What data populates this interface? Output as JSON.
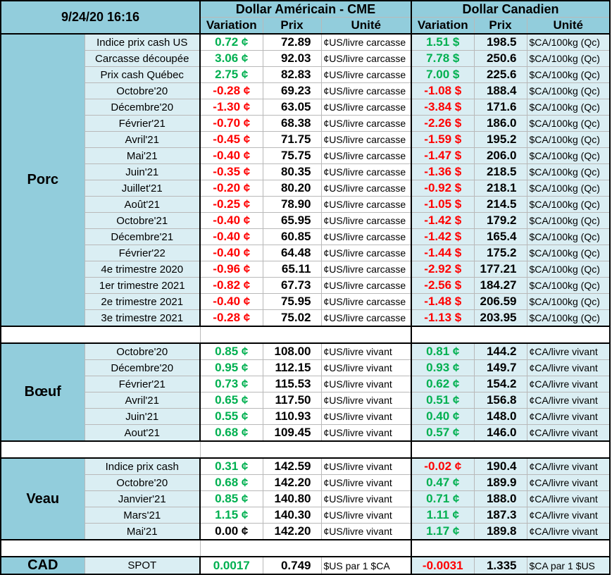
{
  "header": {
    "datetime": "9/24/20 16:16",
    "usd_group": "Dollar Américain - CME",
    "cad_group": "Dollar Canadien",
    "col_variation": "Variation",
    "col_prix": "Prix",
    "col_unite": "Unité"
  },
  "colors": {
    "positive": "#00b050",
    "negative": "#ff0000",
    "header_bg": "#92cddc",
    "row_bg": "#daeef3"
  },
  "sections": [
    {
      "name": "Porc",
      "rows": [
        {
          "label": "Indice prix cash US",
          "us_var": "0.72 ¢",
          "us_price": "72.89",
          "us_unit": "¢US/livre carcasse",
          "ca_var": "1.51 $",
          "ca_price": "198.5",
          "ca_unit": "$CA/100kg (Qc)",
          "us_sign": "pos",
          "ca_sign": "pos"
        },
        {
          "label": "Carcasse découpée",
          "us_var": "3.06 ¢",
          "us_price": "92.03",
          "us_unit": "¢US/livre carcasse",
          "ca_var": "7.78 $",
          "ca_price": "250.6",
          "ca_unit": "$CA/100kg (Qc)",
          "us_sign": "pos",
          "ca_sign": "pos"
        },
        {
          "label": "Prix cash Québec",
          "us_var": "2.75 ¢",
          "us_price": "82.83",
          "us_unit": "¢US/livre carcasse",
          "ca_var": "7.00 $",
          "ca_price": "225.6",
          "ca_unit": "$CA/100kg (Qc)",
          "us_sign": "pos",
          "ca_sign": "pos"
        },
        {
          "label": "Octobre'20",
          "us_var": "-0.28 ¢",
          "us_price": "69.23",
          "us_unit": "¢US/livre carcasse",
          "ca_var": "-1.08 $",
          "ca_price": "188.4",
          "ca_unit": "$CA/100kg (Qc)",
          "us_sign": "neg",
          "ca_sign": "neg"
        },
        {
          "label": "Décembre'20",
          "us_var": "-1.30 ¢",
          "us_price": "63.05",
          "us_unit": "¢US/livre carcasse",
          "ca_var": "-3.84 $",
          "ca_price": "171.6",
          "ca_unit": "$CA/100kg (Qc)",
          "us_sign": "neg",
          "ca_sign": "neg"
        },
        {
          "label": "Février'21",
          "us_var": "-0.70 ¢",
          "us_price": "68.38",
          "us_unit": "¢US/livre carcasse",
          "ca_var": "-2.26 $",
          "ca_price": "186.0",
          "ca_unit": "$CA/100kg (Qc)",
          "us_sign": "neg",
          "ca_sign": "neg"
        },
        {
          "label": "Avril'21",
          "us_var": "-0.45 ¢",
          "us_price": "71.75",
          "us_unit": "¢US/livre carcasse",
          "ca_var": "-1.59 $",
          "ca_price": "195.2",
          "ca_unit": "$CA/100kg (Qc)",
          "us_sign": "neg",
          "ca_sign": "neg"
        },
        {
          "label": "Mai'21",
          "us_var": "-0.40 ¢",
          "us_price": "75.75",
          "us_unit": "¢US/livre carcasse",
          "ca_var": "-1.47 $",
          "ca_price": "206.0",
          "ca_unit": "$CA/100kg (Qc)",
          "us_sign": "neg",
          "ca_sign": "neg"
        },
        {
          "label": "Juin'21",
          "us_var": "-0.35 ¢",
          "us_price": "80.35",
          "us_unit": "¢US/livre carcasse",
          "ca_var": "-1.36 $",
          "ca_price": "218.5",
          "ca_unit": "$CA/100kg (Qc)",
          "us_sign": "neg",
          "ca_sign": "neg"
        },
        {
          "label": "Juillet'21",
          "us_var": "-0.20 ¢",
          "us_price": "80.20",
          "us_unit": "¢US/livre carcasse",
          "ca_var": "-0.92 $",
          "ca_price": "218.1",
          "ca_unit": "$CA/100kg (Qc)",
          "us_sign": "neg",
          "ca_sign": "neg"
        },
        {
          "label": "Août'21",
          "us_var": "-0.25 ¢",
          "us_price": "78.90",
          "us_unit": "¢US/livre carcasse",
          "ca_var": "-1.05 $",
          "ca_price": "214.5",
          "ca_unit": "$CA/100kg (Qc)",
          "us_sign": "neg",
          "ca_sign": "neg"
        },
        {
          "label": "Octobre'21",
          "us_var": "-0.40 ¢",
          "us_price": "65.95",
          "us_unit": "¢US/livre carcasse",
          "ca_var": "-1.42 $",
          "ca_price": "179.2",
          "ca_unit": "$CA/100kg (Qc)",
          "us_sign": "neg",
          "ca_sign": "neg"
        },
        {
          "label": "Décembre'21",
          "us_var": "-0.40 ¢",
          "us_price": "60.85",
          "us_unit": "¢US/livre carcasse",
          "ca_var": "-1.42 $",
          "ca_price": "165.4",
          "ca_unit": "$CA/100kg (Qc)",
          "us_sign": "neg",
          "ca_sign": "neg"
        },
        {
          "label": "Février'22",
          "us_var": "-0.40 ¢",
          "us_price": "64.48",
          "us_unit": "¢US/livre carcasse",
          "ca_var": "-1.44 $",
          "ca_price": "175.2",
          "ca_unit": "$CA/100kg (Qc)",
          "us_sign": "neg",
          "ca_sign": "neg"
        },
        {
          "label": "4e trimestre 2020",
          "us_var": "-0.96 ¢",
          "us_price": "65.11",
          "us_unit": "¢US/livre carcasse",
          "ca_var": "-2.92 $",
          "ca_price": "177.21",
          "ca_unit": "$CA/100kg (Qc)",
          "us_sign": "neg",
          "ca_sign": "neg"
        },
        {
          "label": "1er trimestre 2021",
          "us_var": "-0.82 ¢",
          "us_price": "67.73",
          "us_unit": "¢US/livre carcasse",
          "ca_var": "-2.56 $",
          "ca_price": "184.27",
          "ca_unit": "$CA/100kg (Qc)",
          "us_sign": "neg",
          "ca_sign": "neg"
        },
        {
          "label": "2e trimestre 2021",
          "us_var": "-0.40 ¢",
          "us_price": "75.95",
          "us_unit": "¢US/livre carcasse",
          "ca_var": "-1.48 $",
          "ca_price": "206.59",
          "ca_unit": "$CA/100kg (Qc)",
          "us_sign": "neg",
          "ca_sign": "neg"
        },
        {
          "label": "3e trimestre 2021",
          "us_var": "-0.28 ¢",
          "us_price": "75.02",
          "us_unit": "¢US/livre carcasse",
          "ca_var": "-1.13 $",
          "ca_price": "203.95",
          "ca_unit": "$CA/100kg (Qc)",
          "us_sign": "neg",
          "ca_sign": "neg"
        }
      ]
    },
    {
      "name": "Bœuf",
      "rows": [
        {
          "label": "Octobre'20",
          "us_var": "0.85 ¢",
          "us_price": "108.00",
          "us_unit": "¢US/livre vivant",
          "ca_var": "0.81 ¢",
          "ca_price": "144.2",
          "ca_unit": "¢CA/livre vivant",
          "us_sign": "pos",
          "ca_sign": "pos"
        },
        {
          "label": "Décembre'20",
          "us_var": "0.95 ¢",
          "us_price": "112.15",
          "us_unit": "¢US/livre vivant",
          "ca_var": "0.93 ¢",
          "ca_price": "149.7",
          "ca_unit": "¢CA/livre vivant",
          "us_sign": "pos",
          "ca_sign": "pos"
        },
        {
          "label": "Février'21",
          "us_var": "0.73 ¢",
          "us_price": "115.53",
          "us_unit": "¢US/livre vivant",
          "ca_var": "0.62 ¢",
          "ca_price": "154.2",
          "ca_unit": "¢CA/livre vivant",
          "us_sign": "pos",
          "ca_sign": "pos"
        },
        {
          "label": "Avril'21",
          "us_var": "0.65 ¢",
          "us_price": "117.50",
          "us_unit": "¢US/livre vivant",
          "ca_var": "0.51 ¢",
          "ca_price": "156.8",
          "ca_unit": "¢CA/livre vivant",
          "us_sign": "pos",
          "ca_sign": "pos"
        },
        {
          "label": "Juin'21",
          "us_var": "0.55 ¢",
          "us_price": "110.93",
          "us_unit": "¢US/livre vivant",
          "ca_var": "0.40 ¢",
          "ca_price": "148.0",
          "ca_unit": "¢CA/livre vivant",
          "us_sign": "pos",
          "ca_sign": "pos"
        },
        {
          "label": "Aout'21",
          "us_var": "0.68 ¢",
          "us_price": "109.45",
          "us_unit": "¢US/livre vivant",
          "ca_var": "0.57 ¢",
          "ca_price": "146.0",
          "ca_unit": "¢CA/livre vivant",
          "us_sign": "pos",
          "ca_sign": "pos"
        }
      ]
    },
    {
      "name": "Veau",
      "rows": [
        {
          "label": "Indice prix cash",
          "us_var": "0.31 ¢",
          "us_price": "142.59",
          "us_unit": "¢US/livre vivant",
          "ca_var": "-0.02 ¢",
          "ca_price": "190.4",
          "ca_unit": "¢CA/livre vivant",
          "us_sign": "pos",
          "ca_sign": "neg"
        },
        {
          "label": "Octobre'20",
          "us_var": "0.68 ¢",
          "us_price": "142.20",
          "us_unit": "¢US/livre vivant",
          "ca_var": "0.47 ¢",
          "ca_price": "189.9",
          "ca_unit": "¢CA/livre vivant",
          "us_sign": "pos",
          "ca_sign": "pos"
        },
        {
          "label": "Janvier'21",
          "us_var": "0.85 ¢",
          "us_price": "140.80",
          "us_unit": "¢US/livre vivant",
          "ca_var": "0.71 ¢",
          "ca_price": "188.0",
          "ca_unit": "¢CA/livre vivant",
          "us_sign": "pos",
          "ca_sign": "pos"
        },
        {
          "label": "Mars'21",
          "us_var": "1.15 ¢",
          "us_price": "140.30",
          "us_unit": "¢US/livre vivant",
          "ca_var": "1.11 ¢",
          "ca_price": "187.3",
          "ca_unit": "¢CA/livre vivant",
          "us_sign": "pos",
          "ca_sign": "pos"
        },
        {
          "label": "Mai'21",
          "us_var": "0.00 ¢",
          "us_price": "142.20",
          "us_unit": "¢US/livre vivant",
          "ca_var": "1.17 ¢",
          "ca_price": "189.8",
          "ca_unit": "¢CA/livre vivant",
          "us_sign": "zero",
          "ca_sign": "pos"
        }
      ]
    },
    {
      "name": "CAD",
      "rows": [
        {
          "label": "SPOT",
          "us_var": "0.0017",
          "us_price": "0.749",
          "us_unit": "$US par 1 $CA",
          "ca_var": "-0.0031",
          "ca_price": "1.335",
          "ca_unit": "$CA par 1 $US",
          "us_sign": "pos",
          "ca_sign": "neg"
        }
      ]
    }
  ]
}
